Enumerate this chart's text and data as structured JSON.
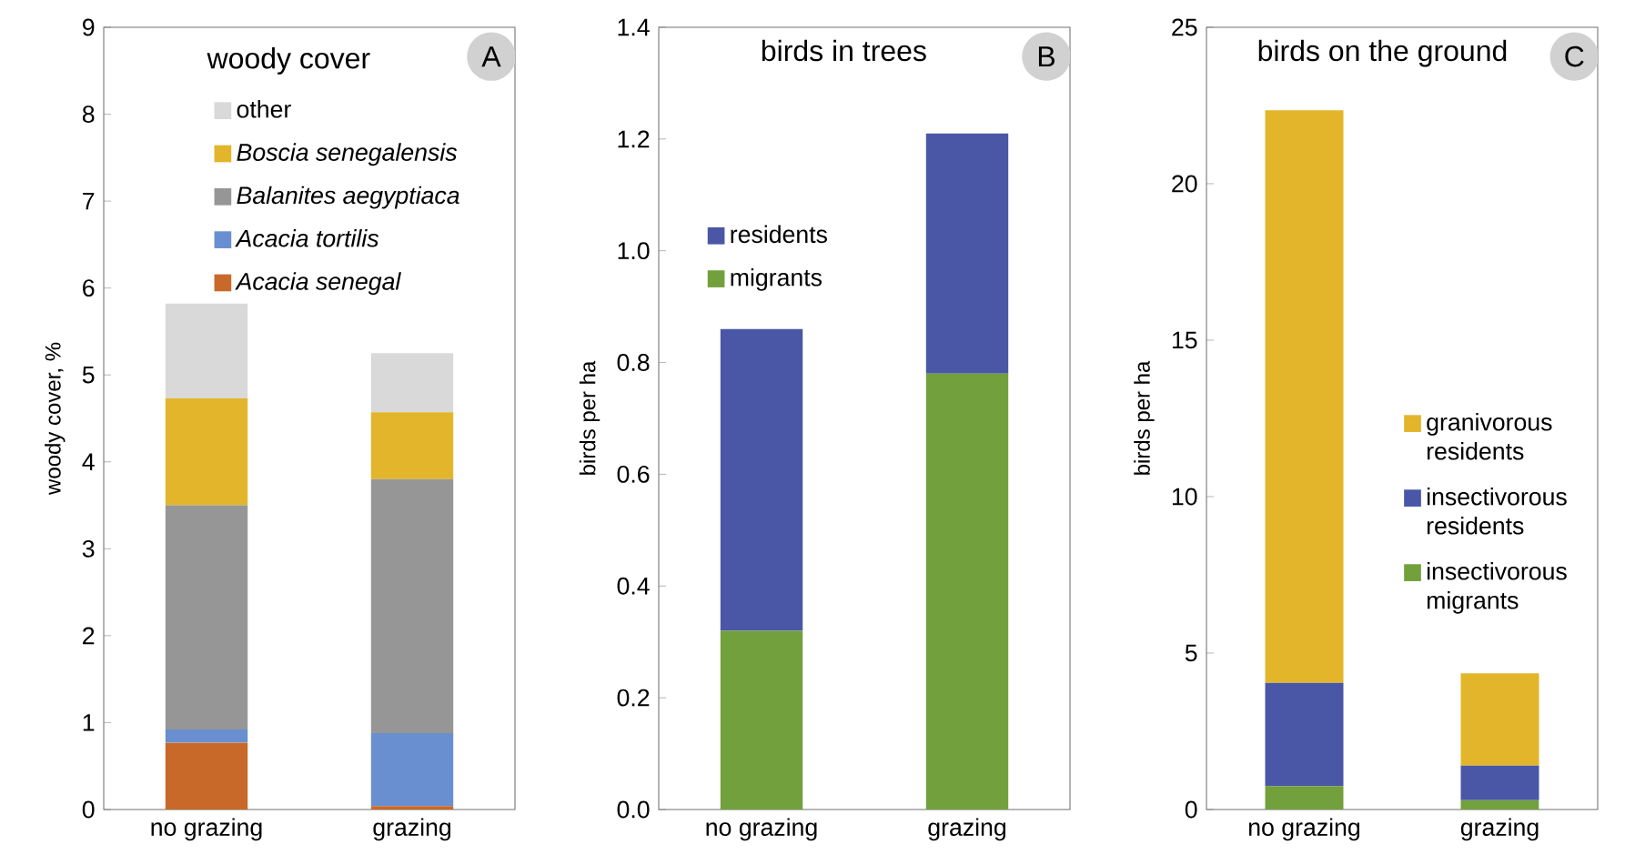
{
  "chart_data": [
    {
      "type": "bar",
      "stacked": true,
      "legend_title": "woody cover",
      "ylabel": "woody cover, %",
      "annotations": [
        "A"
      ],
      "categories": [
        "no grazing",
        "grazing"
      ],
      "ylim": [
        0,
        9
      ],
      "yticks": [
        0,
        1,
        2,
        3,
        4,
        5,
        6,
        7,
        8,
        9
      ],
      "legend": "top",
      "series": [
        {
          "name": "*Acacia senegal*",
          "color": "#c8692a",
          "values": [
            0.77,
            0.04
          ]
        },
        {
          "name": "*Acacia tortilis*",
          "color": "#6a8fd0",
          "values": [
            0.15,
            0.84
          ]
        },
        {
          "name": "*Balanites aegyptiaca*",
          "color": "#969696",
          "values": [
            2.58,
            2.92
          ]
        },
        {
          "name": "*Boscia senegalensis*",
          "color": "#e3b52a",
          "values": [
            1.23,
            0.77
          ]
        },
        {
          "name": "other",
          "color": "#d9d9d9",
          "values": [
            1.09,
            0.68
          ]
        }
      ]
    },
    {
      "type": "bar",
      "stacked": true,
      "title": "birds in trees",
      "ylabel": "birds per ha",
      "annotations": [
        "B"
      ],
      "categories": [
        "no grazing",
        "grazing"
      ],
      "ylim": [
        0,
        1.4
      ],
      "yticks": [
        {
          "value": 0,
          "label": "0.0"
        },
        {
          "value": 0.2,
          "label": "0.2"
        },
        {
          "value": 0.4,
          "label": "0.4"
        },
        {
          "value": 0.6,
          "label": "0.6"
        },
        {
          "value": 0.8,
          "label": "0.8"
        },
        {
          "value": 1.0,
          "label": "1.0"
        },
        {
          "value": 1.2,
          "label": "1.2"
        },
        {
          "value": 1.4,
          "label": "1.4"
        }
      ],
      "legend": "left",
      "series": [
        {
          "name": "migrants",
          "color": "#72a03c",
          "values": [
            0.32,
            0.78
          ]
        },
        {
          "name": "residents",
          "color": "#4a56a6",
          "values": [
            0.54,
            0.43
          ]
        }
      ]
    },
    {
      "type": "bar",
      "stacked": true,
      "title": "birds on the ground",
      "ylabel": "birds per ha",
      "annotations": [
        "C"
      ],
      "categories": [
        "no grazing",
        "grazing"
      ],
      "ylim": [
        0,
        25
      ],
      "yticks": [
        0,
        5,
        10,
        15,
        20,
        25
      ],
      "legend": "right",
      "series": [
        {
          "name": "insectivorous migrants",
          "color": "#72a03c",
          "values": [
            0.75,
            0.3
          ]
        },
        {
          "name": "insectivorous residents",
          "color": "#4a56a6",
          "values": [
            3.3,
            1.1
          ]
        },
        {
          "name": "granivorous residents",
          "color": "#e3b52a",
          "values": [
            18.3,
            2.95
          ]
        }
      ]
    }
  ]
}
